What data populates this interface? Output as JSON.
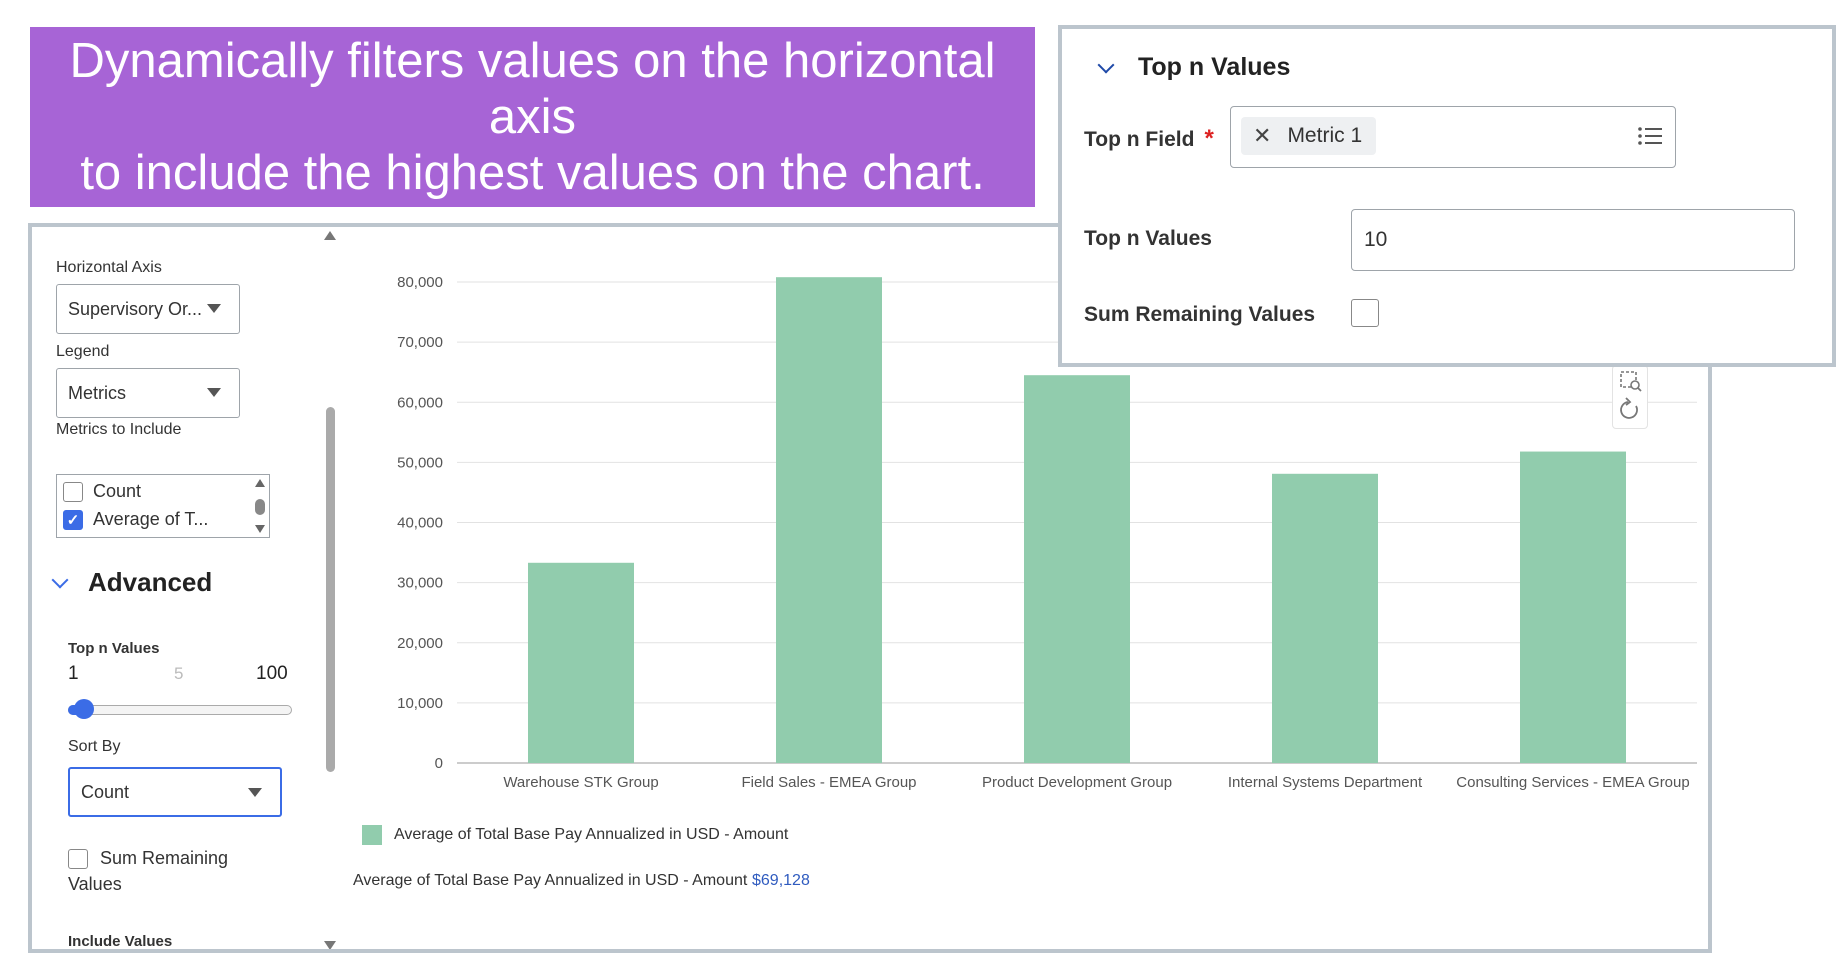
{
  "banner": {
    "line1": "Dynamically filters values on the horizontal axis",
    "line2": "to include the highest values on the chart."
  },
  "left_panel": {
    "horizontal_axis_label": "Horizontal Axis",
    "horizontal_axis_value": "Supervisory Or...",
    "legend_label": "Legend",
    "legend_value": "Metrics",
    "metrics_label": "Metrics to Include",
    "metrics": [
      {
        "label": "Count",
        "checked": false
      },
      {
        "label": "Average of T...",
        "checked": true
      }
    ],
    "advanced_title": "Advanced",
    "top_n_label": "Top n Values",
    "range_min": "1",
    "range_mid": "5",
    "range_max": "100",
    "slider_value": 1,
    "sort_by_label": "Sort By",
    "sort_by_value": "Count",
    "sum_remaining_line1": "Sum Remaining",
    "sum_remaining_line2": "Values",
    "include_values_label": "Include Values"
  },
  "chart_data": {
    "type": "bar",
    "categories": [
      "Warehouse STK Group",
      "Field Sales - EMEA Group",
      "Product Development Group",
      "Internal Systems Department",
      "Consulting Services - EMEA Group"
    ],
    "series": [
      {
        "name": "Average of Total Base Pay Annualized in USD - Amount",
        "values": [
          33300,
          80800,
          64500,
          48100,
          51800
        ],
        "color": "#91ccad"
      }
    ],
    "yticks": [
      "0",
      "10,000",
      "20,000",
      "30,000",
      "40,000",
      "50,000",
      "60,000",
      "70,000",
      "80,000"
    ],
    "ylim": [
      0,
      80000
    ],
    "grid": true,
    "legend": "bottom-left"
  },
  "summary": {
    "label": "Average of Total Base Pay Annualized in USD - Amount",
    "value": "$69,128"
  },
  "overlay": {
    "title": "Top n Values",
    "field_label": "Top n Field",
    "required_mark": "*",
    "chip_text": "Metric 1",
    "values_label": "Top n Values",
    "values_value": "10",
    "sum_label": "Sum Remaining Values",
    "sum_checked": false
  },
  "colors": {
    "banner": "#a764d6",
    "accent": "#3b6ce6",
    "bar": "#91ccad",
    "summary_value": "#2f5bbf"
  }
}
